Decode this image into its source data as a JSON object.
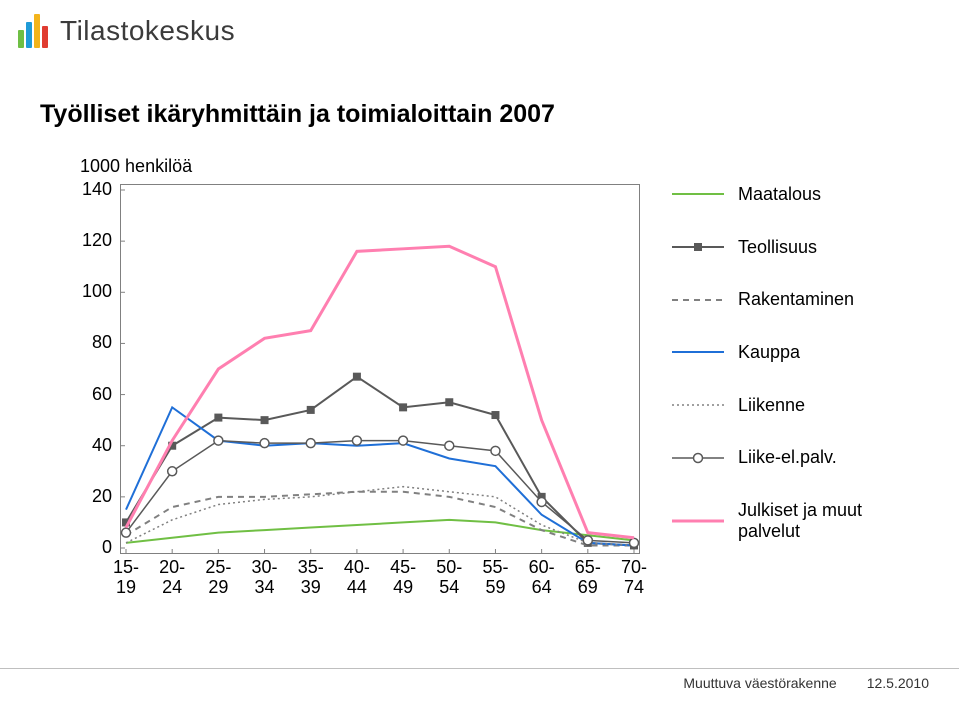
{
  "logo": {
    "bars": [
      {
        "h": 18,
        "c": "#6fbf44"
      },
      {
        "h": 26,
        "c": "#1f9bd7"
      },
      {
        "h": 34,
        "c": "#f3b41b"
      },
      {
        "h": 22,
        "c": "#e03c31"
      }
    ],
    "text": "Tilastokeskus",
    "text_color": "#3b3b3b"
  },
  "title": "Työlliset ikäryhmittäin ja toimialoittain 2007",
  "chart": {
    "type": "line",
    "y_unit_label": "1000 henkilöä",
    "background_color": "#ffffff",
    "plot_border_color": "#808080",
    "x_categories": [
      "15-\n19",
      "20-\n24",
      "25-\n29",
      "30-\n34",
      "35-\n39",
      "40-\n44",
      "45-\n49",
      "50-\n54",
      "55-\n59",
      "60-\n64",
      "65-\n69",
      "70-\n74"
    ],
    "y_ticks": [
      0,
      20,
      40,
      60,
      80,
      100,
      120,
      140
    ],
    "y_min": 0,
    "y_max": 140,
    "axis_fontsize": 18,
    "grid": false,
    "series": [
      {
        "name": "Maatalous",
        "color": "#70bf44",
        "dash": "",
        "width": 2,
        "marker": "none",
        "values": [
          2,
          4,
          6,
          7,
          8,
          9,
          10,
          11,
          10,
          7,
          5,
          3
        ]
      },
      {
        "name": "Teollisuus",
        "color": "#595959",
        "dash": "",
        "width": 2,
        "marker": "square",
        "values": [
          10,
          40,
          51,
          50,
          54,
          67,
          55,
          57,
          52,
          20,
          2,
          1
        ]
      },
      {
        "name": "Rakentaminen",
        "color": "#808080",
        "dash": "6,5",
        "width": 2,
        "marker": "none",
        "values": [
          5,
          16,
          20,
          20,
          21,
          22,
          22,
          20,
          16,
          7,
          1,
          1
        ]
      },
      {
        "name": "Kauppa",
        "color": "#1f6fd7",
        "dash": "",
        "width": 2,
        "marker": "none",
        "values": [
          15,
          55,
          42,
          40,
          41,
          40,
          41,
          35,
          32,
          13,
          2,
          1
        ]
      },
      {
        "name": "Liikenne",
        "color": "#808080",
        "dash": "2,3",
        "width": 1.5,
        "marker": "none",
        "values": [
          2,
          11,
          17,
          19,
          20,
          22,
          24,
          22,
          20,
          9,
          2,
          1
        ]
      },
      {
        "name": "Liike-el.palv.",
        "color": "#595959",
        "dash": "",
        "width": 1.5,
        "marker": "circle",
        "values": [
          6,
          30,
          42,
          41,
          41,
          42,
          42,
          40,
          38,
          18,
          3,
          2
        ]
      },
      {
        "name": "Julkiset ja muut palvelut",
        "color": "#ff7fb0",
        "dash": "",
        "width": 3,
        "marker": "none",
        "values": [
          8,
          42,
          70,
          82,
          85,
          116,
          117,
          118,
          110,
          50,
          6,
          4
        ]
      }
    ]
  },
  "footer": {
    "left": "Muuttuva väestörakenne",
    "right": "12.5.2010"
  }
}
